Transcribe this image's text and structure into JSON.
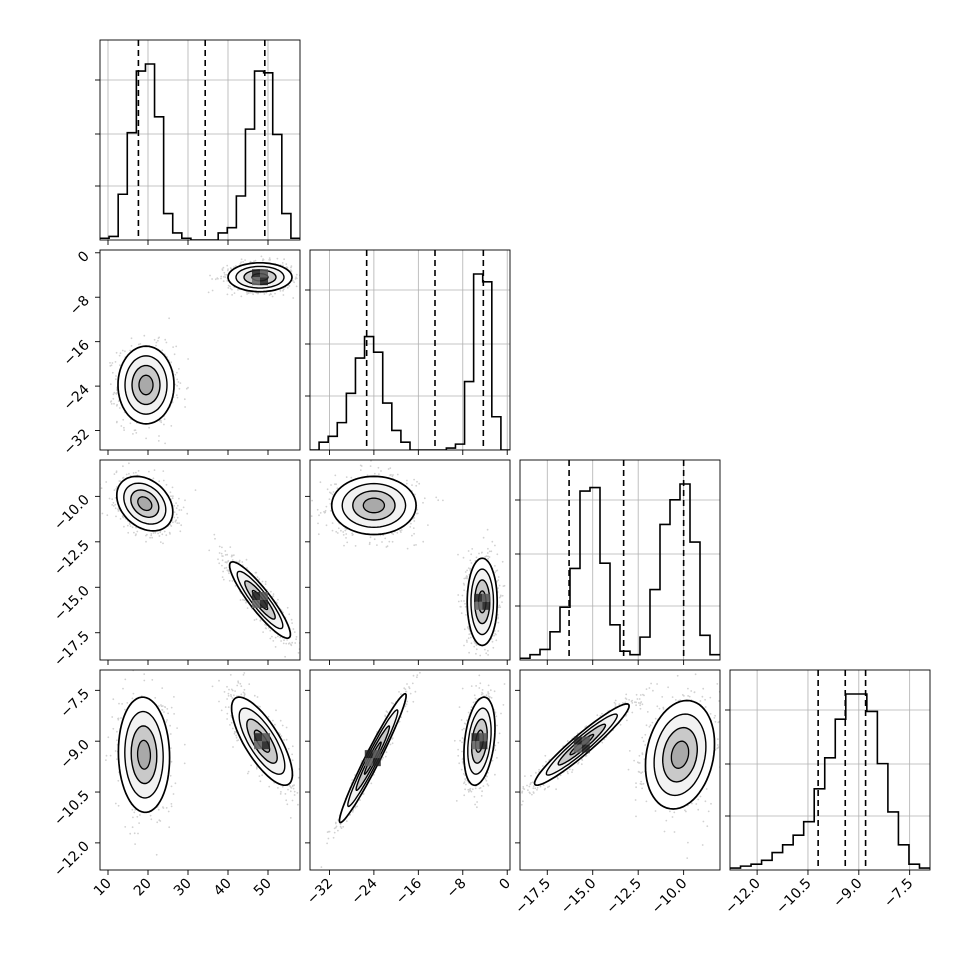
{
  "chart_data": {
    "type": "corner",
    "parameters": [
      {
        "ticks": [
          10,
          20,
          30,
          40,
          50
        ],
        "tick_labels": [
          "10",
          "20",
          "30",
          "40",
          "50"
        ],
        "range": [
          8,
          58
        ],
        "quantiles": [
          17.6,
          34.3,
          49.2
        ],
        "hist": [
          0.01,
          0.02,
          0.26,
          0.61,
          0.96,
          1.0,
          0.7,
          0.15,
          0.04,
          0.01,
          0.0,
          0.0,
          0.0,
          0.04,
          0.07,
          0.25,
          0.63,
          0.96,
          0.95,
          0.6,
          0.15,
          0.01
        ]
      },
      {
        "ticks": [
          -32,
          -24,
          -16,
          -8,
          0
        ],
        "tick_labels": [
          "−32",
          "−24",
          "−16",
          "−8",
          "0"
        ],
        "range": [
          -35.5,
          0.5
        ],
        "quantiles": [
          -25.3,
          -13.0,
          -4.3
        ],
        "hist": [
          0.0,
          0.04,
          0.07,
          0.14,
          0.29,
          0.47,
          0.58,
          0.5,
          0.24,
          0.1,
          0.04,
          0.0,
          0.0,
          0.0,
          0.0,
          0.01,
          0.03,
          0.35,
          0.9,
          0.86,
          0.17,
          0.0
        ]
      },
      {
        "ticks": [
          -17.5,
          -15.0,
          -12.5,
          -10.0
        ],
        "tick_labels": [
          "−17.5",
          "−15.0",
          "−12.5",
          "−10.0"
        ],
        "range": [
          -19.0,
          -8.0
        ],
        "quantiles": [
          -16.3,
          -13.3,
          -10.0
        ],
        "hist": [
          0.01,
          0.03,
          0.06,
          0.16,
          0.3,
          0.52,
          0.96,
          0.98,
          0.55,
          0.2,
          0.05,
          0.03,
          0.13,
          0.4,
          0.77,
          0.91,
          1.0,
          0.67,
          0.14,
          0.03
        ]
      },
      {
        "ticks": [
          -12.0,
          -10.5,
          -9.0,
          -7.5
        ],
        "tick_labels": [
          "−12.0",
          "−10.5",
          "−9.0",
          "−7.5"
        ],
        "range": [
          -12.8,
          -6.9
        ],
        "quantiles": [
          -10.2,
          -9.4,
          -8.8
        ],
        "hist": [
          0.01,
          0.02,
          0.03,
          0.05,
          0.09,
          0.13,
          0.18,
          0.25,
          0.42,
          0.58,
          0.78,
          0.91,
          0.91,
          0.82,
          0.55,
          0.3,
          0.13,
          0.03,
          0.01
        ]
      }
    ],
    "pairs": [
      {
        "row": 1,
        "col": 0,
        "clusters": [
          {
            "cx": 19.5,
            "cy": -23.8,
            "sx": 3.5,
            "sy": 3.5,
            "rho": 0.0,
            "core": false
          },
          {
            "cx": 48.0,
            "cy": -4.4,
            "sx": 4.0,
            "sy": 1.3,
            "rho": 0.0,
            "core": true
          }
        ]
      },
      {
        "row": 2,
        "col": 0,
        "clusters": [
          {
            "cx": 19.2,
            "cy": -10.4,
            "sx": 3.5,
            "sy": 0.75,
            "rho": -0.3,
            "core": false
          },
          {
            "cx": 48.0,
            "cy": -15.7,
            "sx": 3.8,
            "sy": 1.05,
            "rho": -0.9,
            "core": true
          }
        ]
      },
      {
        "row": 2,
        "col": 1,
        "clusters": [
          {
            "cx": -24.0,
            "cy": -10.5,
            "sx": 3.8,
            "sy": 0.8,
            "rho": 0.0,
            "core": false
          },
          {
            "cx": -4.5,
            "cy": -15.8,
            "sx": 1.35,
            "sy": 1.2,
            "rho": 0.0,
            "core": true
          }
        ]
      },
      {
        "row": 3,
        "col": 0,
        "clusters": [
          {
            "cx": 19.0,
            "cy": -9.4,
            "sx": 3.2,
            "sy": 0.85,
            "rho": -0.05,
            "core": false
          },
          {
            "cx": 48.5,
            "cy": -9.0,
            "sx": 3.8,
            "sy": 0.65,
            "rho": -0.75,
            "core": true
          }
        ]
      },
      {
        "row": 3,
        "col": 1,
        "clusters": [
          {
            "cx": -24.2,
            "cy": -9.5,
            "sx": 3.0,
            "sy": 0.95,
            "rho": 0.97,
            "core": true
          },
          {
            "cx": -5.0,
            "cy": -9.0,
            "sx": 1.4,
            "sy": 0.65,
            "rho": 0.3,
            "core": true
          }
        ]
      },
      {
        "row": 3,
        "col": 2,
        "clusters": [
          {
            "cx": -15.6,
            "cy": -9.1,
            "sx": 1.3,
            "sy": 0.6,
            "rho": 0.95,
            "core": true
          },
          {
            "cx": -10.2,
            "cy": -9.4,
            "sx": 0.95,
            "sy": 0.8,
            "rho": 0.2,
            "core": false
          }
        ]
      }
    ],
    "grid": true,
    "histogram_quantile_style": "dashed"
  }
}
